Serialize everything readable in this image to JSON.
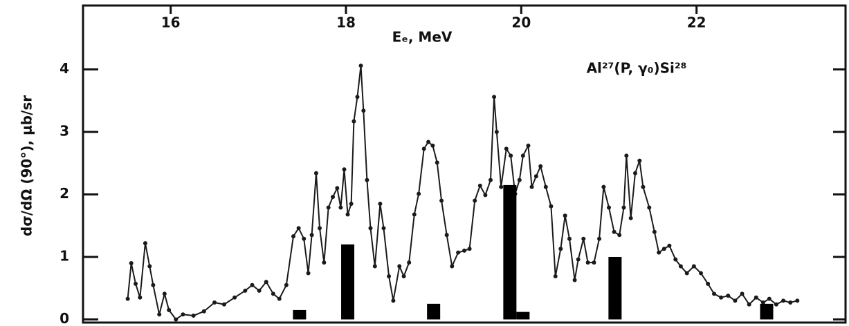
{
  "chart_data": {
    "type": "line",
    "xlabel": "Eₑ, MeV",
    "ylabel": "dσ/dΩ (90°), μb/sr",
    "annotation": "Al²⁷(P, γ₀)Si²⁸",
    "xlim": [
      15.0,
      23.7
    ],
    "xticks": [
      16,
      18,
      20,
      22
    ],
    "ylim": [
      -0.05,
      5.0
    ],
    "yticks": [
      0,
      1,
      2,
      3,
      4
    ],
    "series": [
      {
        "type": "line",
        "color": "#1a1a1a",
        "x": [
          15.51,
          15.55,
          15.6,
          15.65,
          15.71,
          15.76,
          15.8,
          15.87,
          15.93,
          15.98,
          16.06,
          16.14,
          16.26,
          16.38,
          16.5,
          16.61,
          16.73,
          16.85,
          16.93,
          17.01,
          17.09,
          17.17,
          17.24,
          17.32,
          17.4,
          17.46,
          17.52,
          17.57,
          17.61,
          17.66,
          17.7,
          17.75,
          17.8,
          17.85,
          17.9,
          17.94,
          17.98,
          18.02,
          18.06,
          18.09,
          18.13,
          18.17,
          18.2,
          18.24,
          18.28,
          18.33,
          18.39,
          18.43,
          18.49,
          18.54,
          18.61,
          18.66,
          18.72,
          18.78,
          18.83,
          18.89,
          18.94,
          18.99,
          19.04,
          19.09,
          19.15,
          19.21,
          19.28,
          19.35,
          19.41,
          19.47,
          19.53,
          19.59,
          19.65,
          19.69,
          19.72,
          19.77,
          19.83,
          19.88,
          19.93,
          19.98,
          20.02,
          20.08,
          20.12,
          20.17,
          20.22,
          20.28,
          20.34,
          20.39,
          20.45,
          20.5,
          20.55,
          20.61,
          20.65,
          20.71,
          20.76,
          20.83,
          20.89,
          20.94,
          21.0,
          21.06,
          21.12,
          21.17,
          21.2,
          21.25,
          21.3,
          21.35,
          21.39,
          21.46,
          21.52,
          21.57,
          21.63,
          21.69,
          21.76,
          21.82,
          21.89,
          21.97,
          22.05,
          22.13,
          22.2,
          22.28,
          22.36,
          22.44,
          22.52,
          22.6,
          22.68,
          22.76,
          22.83,
          22.91,
          22.99,
          23.07,
          23.15
        ],
        "values": [
          0.33,
          0.9,
          0.57,
          0.35,
          1.22,
          0.85,
          0.55,
          0.08,
          0.41,
          0.15,
          0,
          0.08,
          0.06,
          0.13,
          0.27,
          0.24,
          0.35,
          0.46,
          0.55,
          0.46,
          0.6,
          0.41,
          0.33,
          0.55,
          1.33,
          1.46,
          1.29,
          0.74,
          1.35,
          2.34,
          1.46,
          0.91,
          1.79,
          1.96,
          2.1,
          1.79,
          2.4,
          1.68,
          1.85,
          3.17,
          3.56,
          4.06,
          3.34,
          2.23,
          1.46,
          0.85,
          1.85,
          1.46,
          0.69,
          0.3,
          0.85,
          0.69,
          0.91,
          1.68,
          2.01,
          2.73,
          2.84,
          2.78,
          2.51,
          1.9,
          1.35,
          0.85,
          1.07,
          1.1,
          1.13,
          1.9,
          2.14,
          1.99,
          2.23,
          3.56,
          3.0,
          2.12,
          2.73,
          2.62,
          2.01,
          2.23,
          2.62,
          2.78,
          2.12,
          2.29,
          2.45,
          2.12,
          1.81,
          0.69,
          1.13,
          1.66,
          1.29,
          0.63,
          0.96,
          1.29,
          0.91,
          0.91,
          1.29,
          2.12,
          1.79,
          1.4,
          1.35,
          1.79,
          2.62,
          1.62,
          2.34,
          2.54,
          2.12,
          1.79,
          1.4,
          1.07,
          1.13,
          1.18,
          0.96,
          0.85,
          0.74,
          0.85,
          0.74,
          0.57,
          0.41,
          0.35,
          0.38,
          0.3,
          0.41,
          0.24,
          0.35,
          0.27,
          0.33,
          0.24,
          0.3,
          0.27,
          0.3
        ]
      },
      {
        "type": "bar",
        "color": "#000000",
        "x": [
          17.47,
          18.02,
          19.0,
          19.87,
          20.02,
          21.07,
          22.8
        ],
        "values": [
          0.15,
          1.2,
          0.25,
          2.15,
          0.12,
          1.0,
          0.25
        ]
      }
    ]
  }
}
